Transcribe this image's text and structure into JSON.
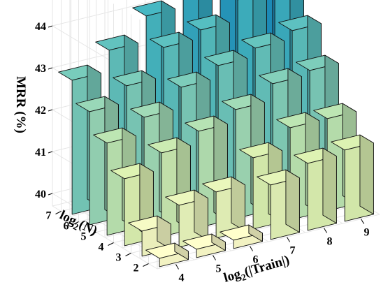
{
  "chart_data": {
    "type": "bar3d",
    "zlabel": "MRR (%)",
    "xlabel_main": "log",
    "xlabel_sub": "2",
    "xlabel_tail": "(|Train|)",
    "ylabel_main": "log",
    "ylabel_sub": "2",
    "ylabel_tail": "(N)",
    "x": [
      4,
      5,
      6,
      7,
      8,
      9
    ],
    "y": [
      2,
      3,
      4,
      5,
      6,
      7
    ],
    "x_ticks": [
      "4",
      "5",
      "6",
      "7",
      "8",
      "9"
    ],
    "y_ticks": [
      "2",
      "3",
      "4",
      "5",
      "6",
      "7"
    ],
    "z_ticks": [
      "40",
      "41",
      "42",
      "43",
      "44"
    ],
    "zlim": [
      39.7,
      45.4
    ],
    "values": [
      [
        39.9,
        39.9,
        39.9,
        41.0,
        41.3,
        41.4
      ],
      [
        40.3,
        40.7,
        40.8,
        41.4,
        41.9,
        41.9
      ],
      [
        41.3,
        41.7,
        42.0,
        42.3,
        42.7,
        42.8
      ],
      [
        41.9,
        42.3,
        42.8,
        43.1,
        43.3,
        43.5
      ],
      [
        42.4,
        42.8,
        43.5,
        43.7,
        44.2,
        44.3
      ],
      [
        42.9,
        43.4,
        44.0,
        44.5,
        44.9,
        45.2
      ]
    ]
  }
}
